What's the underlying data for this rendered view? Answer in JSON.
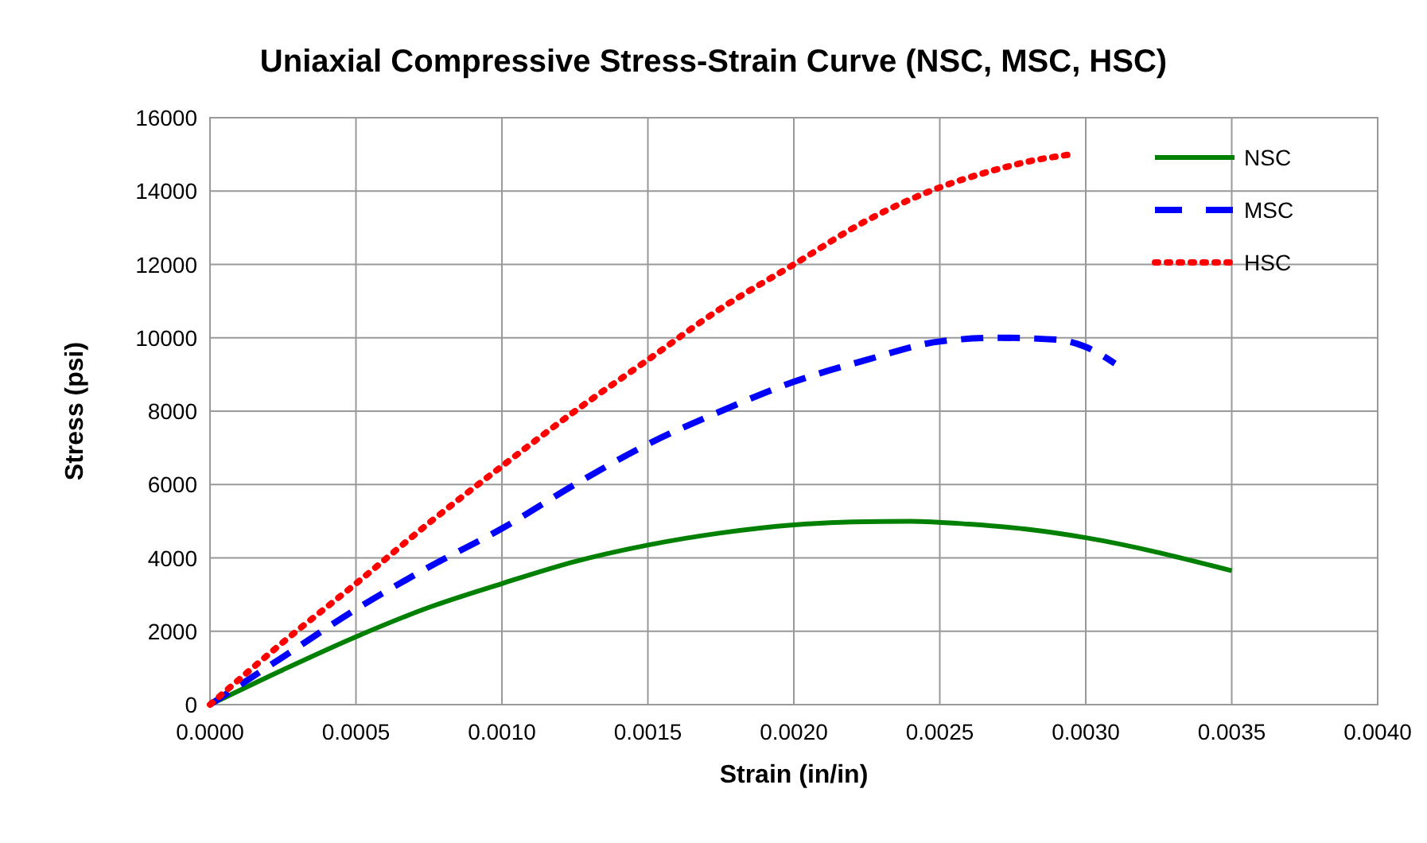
{
  "chart_data": {
    "type": "line",
    "title": "Uniaxial Compressive Stress-Strain Curve (NSC, MSC, HSC)",
    "xlabel": "Strain (in/in)",
    "ylabel": "Stress (psi)",
    "series": [
      {
        "name": "NSC",
        "color": "#008000",
        "line_style": "solid",
        "x": [
          0,
          0.00025,
          0.0005,
          0.00075,
          0.001,
          0.00125,
          0.0015,
          0.00175,
          0.002,
          0.0022,
          0.0024,
          0.0026,
          0.0028,
          0.003,
          0.0035
        ],
        "values": [
          0,
          950,
          1850,
          2650,
          3300,
          3900,
          4350,
          4680,
          4900,
          4980,
          5000,
          4920,
          4780,
          4550,
          3650
        ]
      },
      {
        "name": "MSC",
        "color": "#0000ff",
        "line_style": "dashed",
        "x": [
          0,
          0.00025,
          0.0005,
          0.00075,
          0.001,
          0.00125,
          0.0015,
          0.00175,
          0.002,
          0.00225,
          0.0025,
          0.0027,
          0.0029,
          0.003,
          0.0031
        ],
        "values": [
          0,
          1300,
          2600,
          3750,
          4800,
          6000,
          7100,
          8000,
          8800,
          9400,
          9900,
          10000,
          9950,
          9750,
          9300
        ]
      },
      {
        "name": "HSC",
        "color": "#ff0000",
        "line_style": "dotted",
        "x": [
          0,
          0.00025,
          0.0005,
          0.00075,
          0.001,
          0.00125,
          0.0015,
          0.00175,
          0.002,
          0.00225,
          0.0025,
          0.0027,
          0.0028,
          0.00295
        ],
        "values": [
          0,
          1700,
          3300,
          4950,
          6500,
          8000,
          9400,
          10800,
          12000,
          13200,
          14100,
          14600,
          14800,
          15000
        ]
      }
    ],
    "xlim": [
      0,
      0.004
    ],
    "ylim": [
      0,
      16000
    ],
    "xticks": [
      {
        "value": 0,
        "label": "0.0000"
      },
      {
        "value": 0.0005,
        "label": "0.0005"
      },
      {
        "value": 0.001,
        "label": "0.0010"
      },
      {
        "value": 0.0015,
        "label": "0.0015"
      },
      {
        "value": 0.002,
        "label": "0.0020"
      },
      {
        "value": 0.0025,
        "label": "0.0025"
      },
      {
        "value": 0.003,
        "label": "0.0030"
      },
      {
        "value": 0.0035,
        "label": "0.0035"
      },
      {
        "value": 0.004,
        "label": "0.0040"
      }
    ],
    "yticks": [
      0,
      2000,
      4000,
      6000,
      8000,
      10000,
      12000,
      14000,
      16000
    ],
    "grid": true,
    "legend": "top right"
  }
}
